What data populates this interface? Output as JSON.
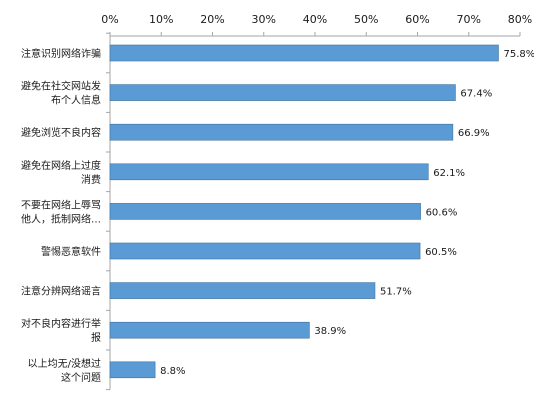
{
  "chart_data": {
    "type": "bar",
    "orientation": "horizontal",
    "categories": [
      [
        "注意识别网络诈骗"
      ],
      [
        "避免在社交网站发",
        "布个人信息"
      ],
      [
        "避免浏览不良内容"
      ],
      [
        "避免在网络上过度",
        "消费"
      ],
      [
        "不要在网络上辱骂",
        "他人，抵制网络…"
      ],
      [
        "警惕恶意软件"
      ],
      [
        "注意分辨网络谣言"
      ],
      [
        "对不良内容进行举",
        "报"
      ],
      [
        "以上均无/没想过",
        "这个问题"
      ]
    ],
    "values": [
      75.8,
      67.4,
      66.9,
      62.1,
      60.6,
      60.5,
      51.7,
      38.9,
      8.8
    ],
    "value_labels": [
      "75.8%",
      "67.4%",
      "66.9%",
      "62.1%",
      "60.6%",
      "60.5%",
      "51.7%",
      "38.9%",
      "8.8%"
    ],
    "x_ticks": [
      "0%",
      "10%",
      "20%",
      "30%",
      "40%",
      "50%",
      "60%",
      "70%",
      "80%"
    ],
    "xlim": [
      0,
      80
    ],
    "x_axis_position": "top",
    "grid": false,
    "legend": "none",
    "bar_color": "#5b9bd5",
    "bar_edge_color": "#41719c"
  }
}
